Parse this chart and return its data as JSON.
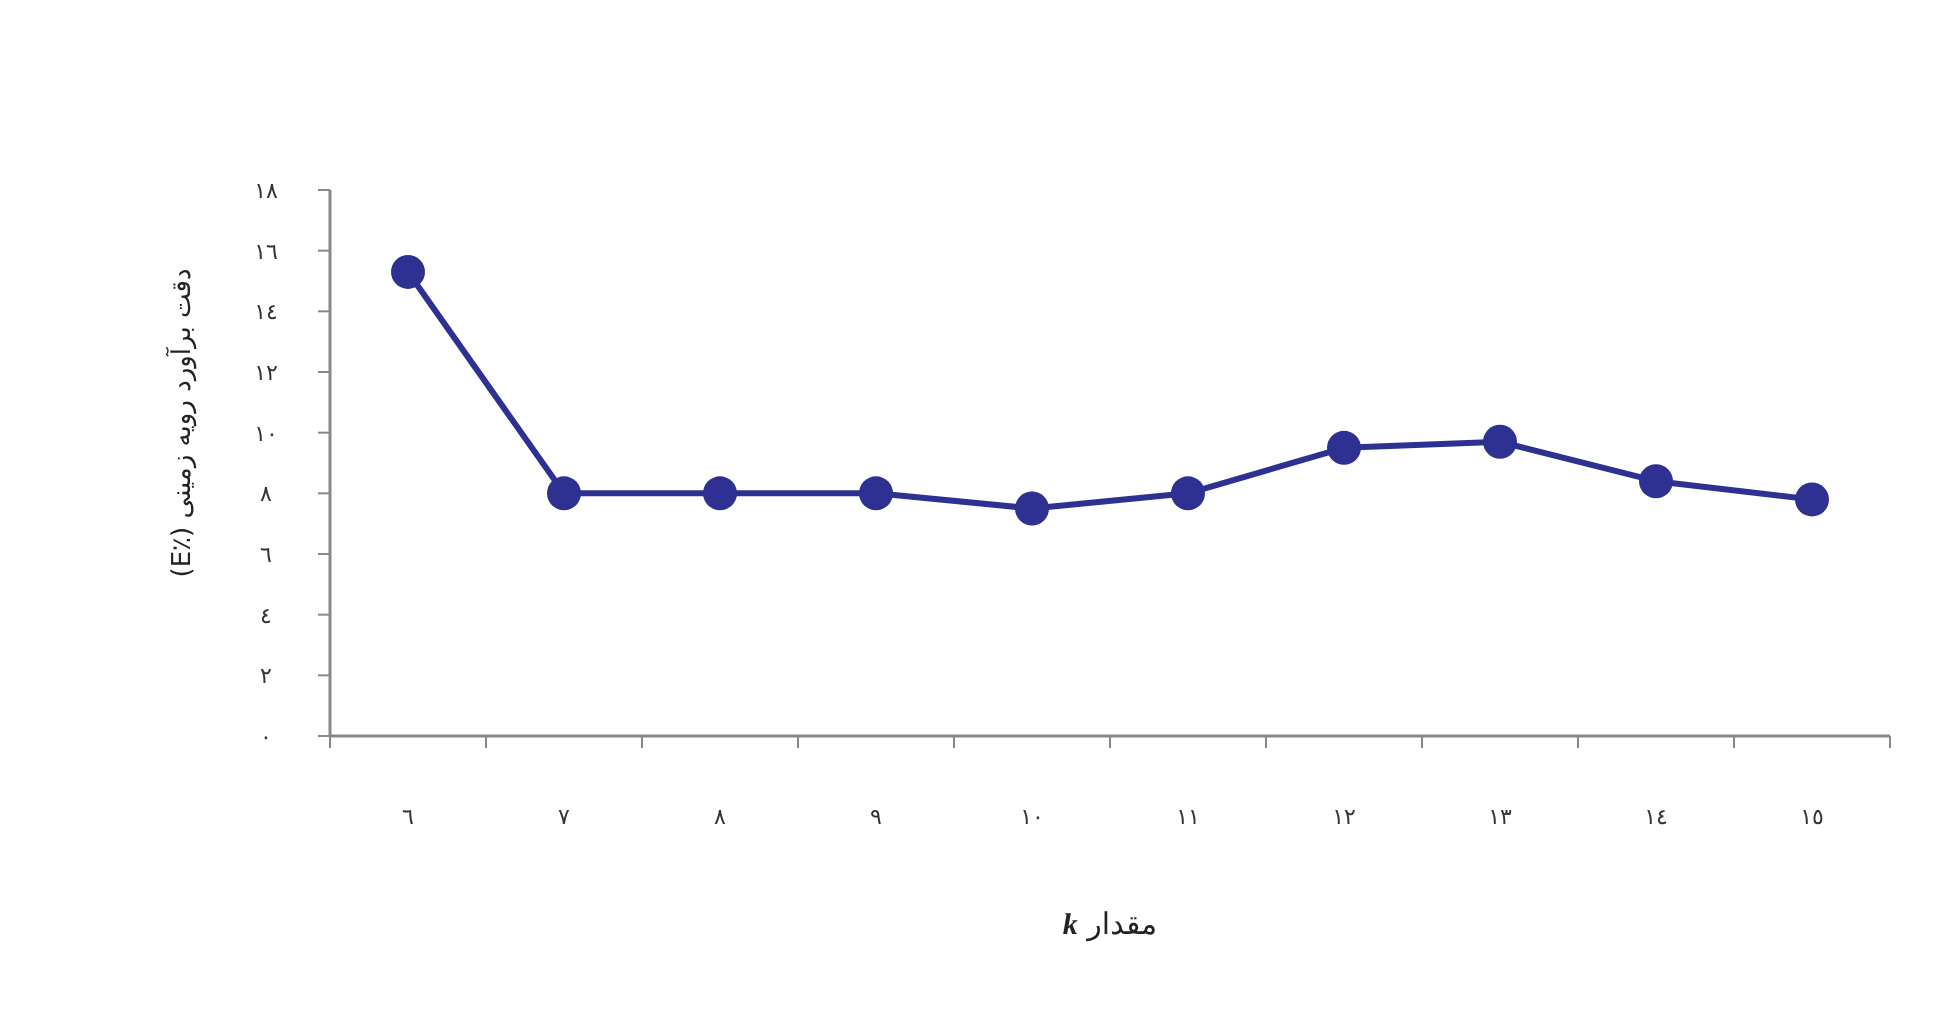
{
  "chart_data": {
    "type": "line",
    "xlabel": "مقدار *k*",
    "ylabel": "دقت برآورد رویه زمینی (٪E)",
    "categories": [
      "٦",
      "٧",
      "٨",
      "٩",
      "١٠",
      "١١",
      "١٢",
      "١٣",
      "١٤",
      "١٥"
    ],
    "series": [
      {
        "color": "#2e3192",
        "values": [
          15.3,
          8.0,
          8.0,
          8.0,
          7.5,
          8.0,
          9.5,
          9.7,
          8.4,
          7.8
        ]
      }
    ],
    "ylim": [
      0,
      18
    ],
    "yticks": [
      {
        "value": 0,
        "label": "٠"
      },
      {
        "value": 2,
        "label": "٢"
      },
      {
        "value": 4,
        "label": "٤"
      },
      {
        "value": 6,
        "label": "٦"
      },
      {
        "value": 8,
        "label": "٨"
      },
      {
        "value": 10,
        "label": "١٠"
      },
      {
        "value": 12,
        "label": "١٢"
      },
      {
        "value": 14,
        "label": "١٤"
      },
      {
        "value": 16,
        "label": "١٦"
      },
      {
        "value": 18,
        "label": "١٨"
      }
    ],
    "grid": false,
    "marker": "circle",
    "line_style": "solid"
  }
}
